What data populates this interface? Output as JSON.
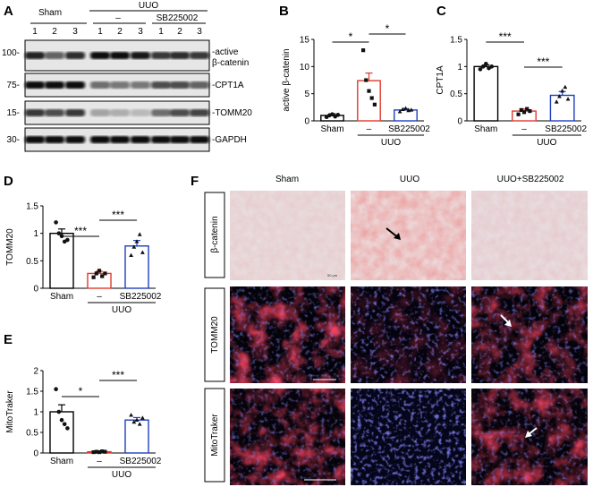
{
  "panels": {
    "A": {
      "letter": "A",
      "group_uuo": "UUO",
      "group_sham": "Sham",
      "dash": "–",
      "drug": "SB225002",
      "lanes": [
        "1",
        "2",
        "3",
        "1",
        "2",
        "3",
        "1",
        "2",
        "3"
      ],
      "blots": [
        {
          "mw": "100-",
          "label1": "-active",
          "label2": "β-catenin"
        },
        {
          "mw": "75-",
          "label1": "-CPT1A",
          "label2": ""
        },
        {
          "mw": "15-",
          "label1": "-TOMM20",
          "label2": ""
        },
        {
          "mw": "30-",
          "label1": "-GAPDH",
          "label2": ""
        }
      ]
    },
    "B": {
      "letter": "B",
      "ylabel": "active β-catenin",
      "ticks": [
        "0",
        "5",
        "10",
        "15"
      ],
      "sig": [
        "*",
        "*"
      ]
    },
    "C": {
      "letter": "C",
      "ylabel": "CPT1A",
      "ticks": [
        "0",
        "0.5",
        "1",
        "1.5"
      ],
      "sig": [
        "***",
        "***"
      ]
    },
    "D": {
      "letter": "D",
      "ylabel": "TOMM20",
      "ticks": [
        "0",
        "0.5",
        "1",
        "1.5"
      ],
      "sig": [
        "***",
        "***"
      ]
    },
    "E": {
      "letter": "E",
      "ylabel": "MitoTraker",
      "ticks": [
        "0",
        "0.5",
        "1",
        "1.5",
        "2"
      ],
      "sig": [
        "*",
        "***"
      ]
    },
    "F": {
      "letter": "F",
      "cols": [
        "Sham",
        "UUO",
        "UUO+SB225002"
      ],
      "rows": [
        "β-catenin",
        "TOMM20",
        "MitoTraker"
      ],
      "scale": "50 μm"
    }
  },
  "xaxis": {
    "sham": "Sham",
    "dash": "–",
    "drug": "SB225002",
    "group": "UUO"
  },
  "colors": {
    "sham": "#000000",
    "uuo": "#e03a2f",
    "sb": "#1f3fbf"
  },
  "chart_data": [
    {
      "panel": "B",
      "type": "bar",
      "title": "",
      "ylabel": "active β-catenin",
      "ylim": [
        0,
        15
      ],
      "categories": [
        "Sham",
        "UUO",
        "UUO+SB225002"
      ],
      "values": [
        1.0,
        7.4,
        2.0
      ],
      "errors": [
        0.3,
        1.4,
        0.25
      ],
      "points": [
        [
          0.7,
          1.0,
          1.2,
          0.8,
          1.1
        ],
        [
          13.0,
          7.5,
          5.5,
          4.2,
          3.0
        ],
        [
          1.7,
          2.1,
          2.3,
          1.9,
          2.0
        ]
      ]
    },
    {
      "panel": "C",
      "type": "bar",
      "title": "",
      "ylabel": "CPT1A",
      "ylim": [
        0,
        1.5
      ],
      "categories": [
        "Sham",
        "UUO",
        "UUO+SB225002"
      ],
      "values": [
        1.0,
        0.18,
        0.47
      ],
      "errors": [
        0.03,
        0.04,
        0.07
      ],
      "points": [
        [
          0.95,
          1.0,
          1.05,
          0.97,
          1.0
        ],
        [
          0.12,
          0.2,
          0.16,
          0.22,
          0.18
        ],
        [
          0.35,
          0.45,
          0.55,
          0.62,
          0.4
        ]
      ]
    },
    {
      "panel": "D",
      "type": "bar",
      "title": "",
      "ylabel": "TOMM20",
      "ylim": [
        0,
        1.5
      ],
      "categories": [
        "Sham",
        "UUO",
        "UUO+SB225002"
      ],
      "values": [
        1.0,
        0.27,
        0.77
      ],
      "errors": [
        0.08,
        0.04,
        0.1
      ],
      "points": [
        [
          1.2,
          1.0,
          0.95,
          0.85,
          0.88
        ],
        [
          0.2,
          0.27,
          0.32,
          0.22,
          0.27
        ],
        [
          0.6,
          0.75,
          0.85,
          0.98,
          0.65
        ]
      ]
    },
    {
      "panel": "E",
      "type": "bar",
      "title": "",
      "ylabel": "MitoTraker",
      "ylim": [
        0,
        2
      ],
      "categories": [
        "Sham",
        "UUO",
        "UUO+SB225002"
      ],
      "values": [
        1.0,
        0.03,
        0.8
      ],
      "errors": [
        0.17,
        0.01,
        0.06
      ],
      "points": [
        [
          1.55,
          1.0,
          0.8,
          0.7,
          0.6
        ],
        [
          0.02,
          0.03,
          0.02,
          0.04,
          0.03
        ],
        [
          0.92,
          0.75,
          0.8,
          0.7,
          0.85
        ]
      ]
    }
  ]
}
